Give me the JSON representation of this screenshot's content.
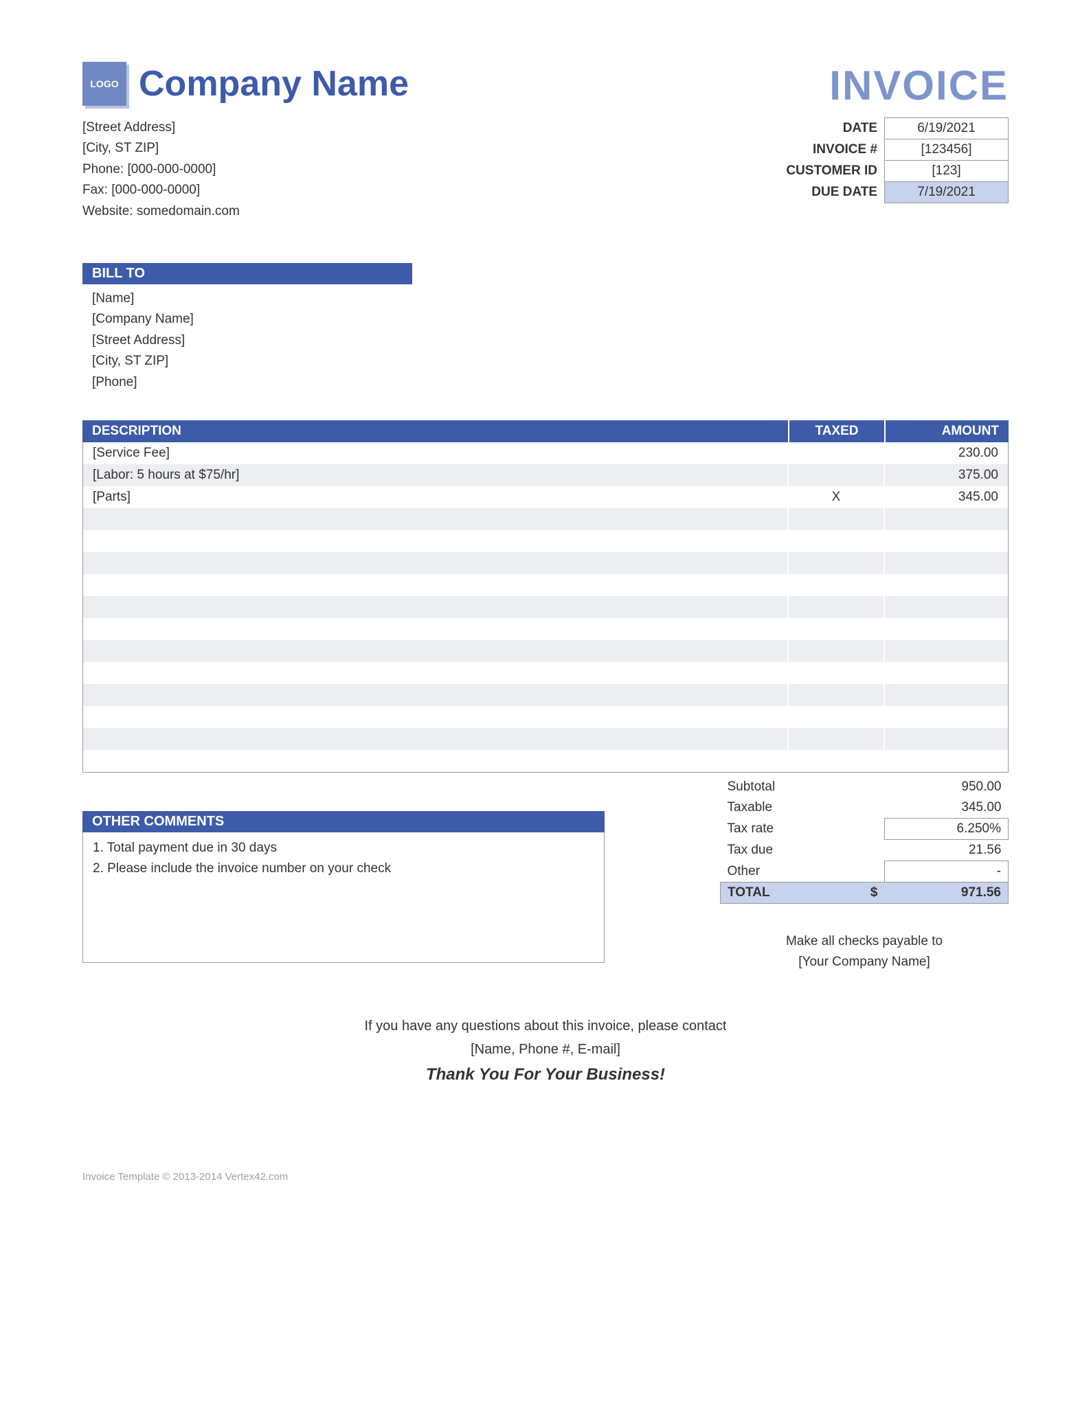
{
  "colors": {
    "brand": "#3e5ba9",
    "brand_light": "#7e94cc",
    "highlight_cell": "#c7d2ec",
    "row_alt": "#eceef1",
    "border": "#999999",
    "text": "#333333",
    "muted": "#9aa0a8",
    "background": "#ffffff"
  },
  "typography": {
    "base_font": "Arial",
    "company_name_size_pt": 39,
    "invoice_title_size_pt": 45,
    "body_size_pt": 14
  },
  "logo_text": "LOGO",
  "company": {
    "name": "Company Name",
    "street": "[Street Address]",
    "city": "[City, ST  ZIP]",
    "phone_label": "Phone: [000-000-0000]",
    "fax_label": "Fax: [000-000-0000]",
    "website_label": "Website: somedomain.com"
  },
  "invoice_title": "INVOICE",
  "meta": {
    "labels": {
      "date": "DATE",
      "invoice_no": "INVOICE #",
      "customer_id": "CUSTOMER ID",
      "due_date": "DUE DATE"
    },
    "date": "6/19/2021",
    "invoice_no": "[123456]",
    "customer_id": "[123]",
    "due_date": "7/19/2021"
  },
  "bill_to": {
    "header": "BILL TO",
    "name": "[Name]",
    "company": "[Company Name]",
    "street": "[Street Address]",
    "city": "[City, ST  ZIP]",
    "phone": "[Phone]"
  },
  "items": {
    "columns": {
      "description": "DESCRIPTION",
      "taxed": "TAXED",
      "amount": "AMOUNT"
    },
    "rows": [
      {
        "description": "[Service Fee]",
        "taxed": "",
        "amount": "230.00"
      },
      {
        "description": "[Labor: 5 hours at $75/hr]",
        "taxed": "",
        "amount": "375.00"
      },
      {
        "description": "[Parts]",
        "taxed": "X",
        "amount": "345.00"
      },
      {
        "description": "",
        "taxed": "",
        "amount": ""
      },
      {
        "description": "",
        "taxed": "",
        "amount": ""
      },
      {
        "description": "",
        "taxed": "",
        "amount": ""
      },
      {
        "description": "",
        "taxed": "",
        "amount": ""
      },
      {
        "description": "",
        "taxed": "",
        "amount": ""
      },
      {
        "description": "",
        "taxed": "",
        "amount": ""
      },
      {
        "description": "",
        "taxed": "",
        "amount": ""
      },
      {
        "description": "",
        "taxed": "",
        "amount": ""
      },
      {
        "description": "",
        "taxed": "",
        "amount": ""
      },
      {
        "description": "",
        "taxed": "",
        "amount": ""
      },
      {
        "description": "",
        "taxed": "",
        "amount": ""
      },
      {
        "description": "",
        "taxed": "",
        "amount": ""
      }
    ]
  },
  "totals": {
    "labels": {
      "subtotal": "Subtotal",
      "taxable": "Taxable",
      "tax_rate": "Tax rate",
      "tax_due": "Tax due",
      "other": "Other",
      "total": "TOTAL"
    },
    "subtotal": "950.00",
    "taxable": "345.00",
    "tax_rate": "6.250%",
    "tax_due": "21.56",
    "other": "-",
    "currency": "$",
    "total": "971.56"
  },
  "comments": {
    "header": "OTHER COMMENTS",
    "line1": "1. Total payment due in 30 days",
    "line2": "2. Please include the invoice number on your check"
  },
  "payable": {
    "line1": "Make all checks payable to",
    "line2": "[Your Company Name]"
  },
  "footer": {
    "line1": "If you have any questions about this invoice, please contact",
    "line2": "[Name, Phone #, E-mail]",
    "thanks": "Thank You For Your Business!"
  },
  "copyright": "Invoice Template © 2013-2014 Vertex42.com"
}
